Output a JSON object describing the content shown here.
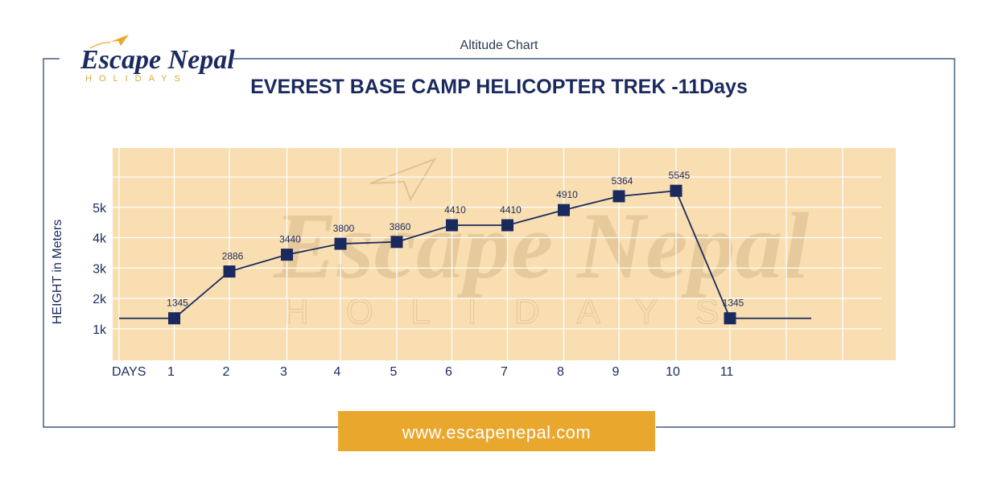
{
  "header": {
    "caption": "Altitude Chart"
  },
  "logo": {
    "name": "Escape Nepal",
    "tagline": "HOLIDAYS"
  },
  "footer": {
    "url": "www.escapenepal.com"
  },
  "colors": {
    "navy": "#1b2a5e",
    "plot_background": "#f8deb0",
    "url_banner": "#e9a82d",
    "frame": "#1f3a66"
  },
  "chart_data": {
    "type": "line",
    "title": "EVEREST BASE CAMP HELICOPTER TREK -11Days",
    "ylabel": "HEIGHT in Meters",
    "xaxis_title": "DAYS",
    "categories": [
      "1",
      "2",
      "3",
      "4",
      "5",
      "6",
      "7",
      "8",
      "9",
      "10",
      "11"
    ],
    "y_ticks": [
      "1k",
      "2k",
      "3k",
      "4k",
      "5k"
    ],
    "ylim": [
      0,
      7000
    ],
    "grid": true,
    "marker": "square",
    "series": [
      {
        "values": [
          1345,
          2886,
          3440,
          3800,
          3860,
          4410,
          4410,
          4910,
          5364,
          5545,
          1345
        ],
        "labels": [
          "1345",
          "2886",
          "3440",
          "3800",
          "3860",
          "4410",
          "4410",
          "4910",
          "5364",
          "5545",
          "1345"
        ]
      }
    ]
  }
}
